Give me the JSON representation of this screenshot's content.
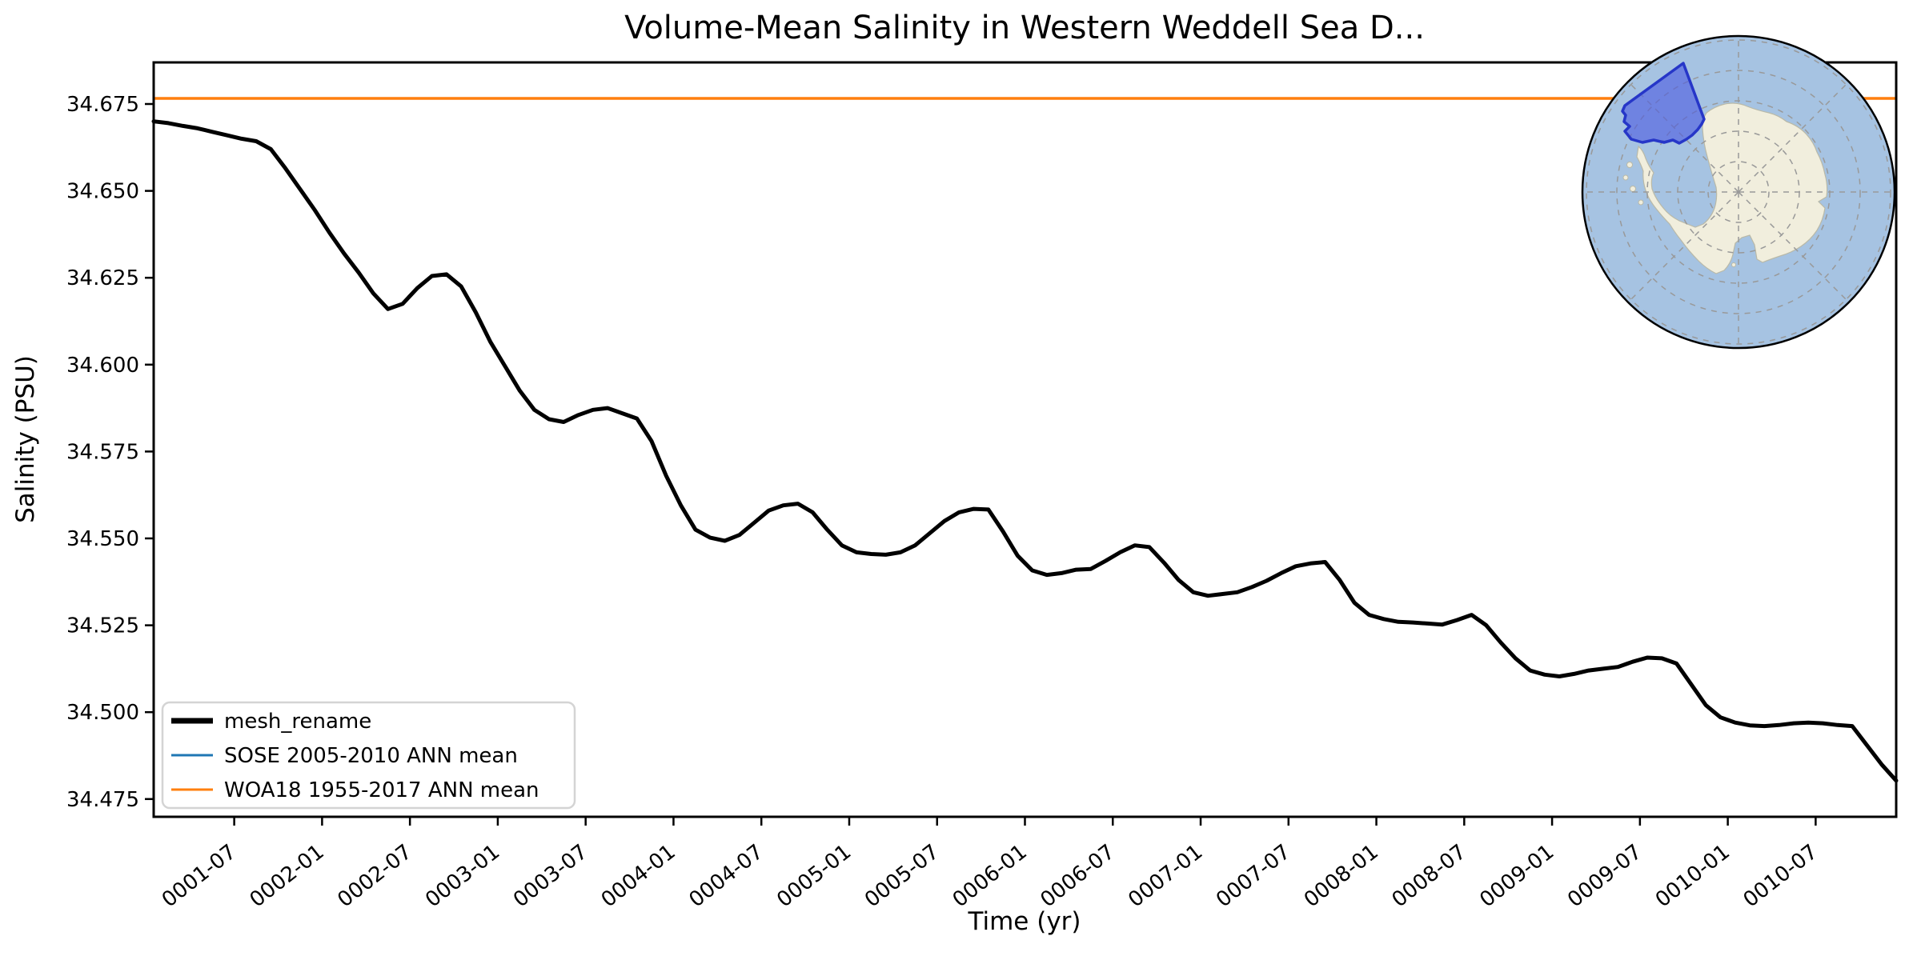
{
  "title": "Volume-Mean Salinity in Western Weddell Sea D...",
  "axes": {
    "xlabel": "Time (yr)",
    "ylabel": "Salinity (PSU)"
  },
  "legend": {
    "items": [
      {
        "label": "mesh_rename",
        "color": "#000000",
        "line_weight": 7
      },
      {
        "label": "SOSE 2005-2010 ANN mean",
        "color": "#1f77b4",
        "line_weight": 3
      },
      {
        "label": "WOA18 1955-2017 ANN mean",
        "color": "#ff7f0e",
        "line_weight": 3
      }
    ]
  },
  "chart_data": {
    "type": "line",
    "title": "Volume-Mean Salinity in Western Weddell Sea D...",
    "xlabel": "Time (yr)",
    "ylabel": "Salinity (PSU)",
    "x_start": "0001-01",
    "x_end": "0010-12",
    "x_step": "1 month",
    "xtick_labels": [
      "0001-07",
      "0002-01",
      "0002-07",
      "0003-01",
      "0003-07",
      "0004-01",
      "0004-07",
      "0005-01",
      "0005-07",
      "0006-01",
      "0006-07",
      "0007-01",
      "0007-07",
      "0008-01",
      "0008-07",
      "0009-01",
      "0009-07",
      "0010-01",
      "0010-07"
    ],
    "yticks": [
      "34.675",
      "34.650",
      "34.625",
      "34.600",
      "34.575",
      "34.550",
      "34.525",
      "34.500",
      "34.475"
    ],
    "ylim": [
      34.4695,
      34.6873
    ],
    "grid": false,
    "legend_position": "lower left",
    "series": [
      {
        "name": "mesh_rename",
        "color": "#000000",
        "values": [
          34.67,
          34.6695,
          34.6687,
          34.668,
          34.667,
          34.666,
          34.665,
          34.6643,
          34.662,
          34.6565,
          34.6505,
          34.6445,
          34.638,
          34.632,
          34.6265,
          34.6205,
          34.616,
          34.6175,
          34.622,
          34.6255,
          34.626,
          34.6225,
          34.615,
          34.6065,
          34.5995,
          34.5925,
          34.587,
          34.5843,
          34.5835,
          34.5855,
          34.587,
          34.5875,
          34.586,
          34.5845,
          34.578,
          34.568,
          34.5595,
          34.5525,
          34.5502,
          34.5493,
          34.551,
          34.5545,
          34.558,
          34.5595,
          34.56,
          34.5575,
          34.5525,
          34.548,
          34.546,
          34.5455,
          34.5453,
          34.546,
          34.548,
          34.5515,
          34.555,
          34.5575,
          34.5585,
          34.5583,
          34.552,
          34.545,
          34.5408,
          34.5395,
          34.54,
          34.541,
          34.5412,
          34.5435,
          34.546,
          34.548,
          34.5475,
          34.543,
          34.538,
          34.5345,
          34.5335,
          34.534,
          34.5345,
          34.536,
          34.5378,
          34.54,
          34.542,
          34.5428,
          34.5432,
          34.538,
          34.5315,
          34.528,
          34.5268,
          34.526,
          34.5258,
          34.5255,
          34.5252,
          34.5265,
          34.528,
          34.525,
          34.52,
          34.5155,
          34.512,
          34.5108,
          34.5103,
          34.511,
          34.512,
          34.5125,
          34.513,
          34.5145,
          34.5157,
          34.5155,
          34.514,
          34.508,
          34.502,
          34.4985,
          34.497,
          34.4962,
          34.496,
          34.4963,
          34.4968,
          34.497,
          34.4968,
          34.4963,
          34.496,
          34.4905,
          34.485,
          34.4803
        ]
      }
    ],
    "ref_lines": [
      {
        "name": "SOSE 2005-2010 ANN mean",
        "color": "#1f77b4",
        "value": null
      },
      {
        "name": "WOA18 1955-2017 ANN mean",
        "color": "#ff7f0e",
        "value": 34.6766
      }
    ],
    "inset_map": {
      "description": "South polar stereographic map of Antarctica with highlighted Western Weddell Sea region",
      "ocean_color": "#a6c3e2",
      "land_color": "#f1eedd",
      "region_fill": "#4e5ce0",
      "region_edge": "#2636c8",
      "graticule_color": "#999999"
    }
  }
}
